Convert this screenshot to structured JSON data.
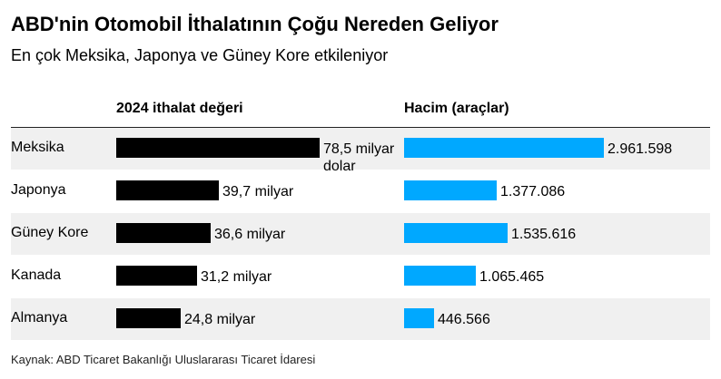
{
  "title": "ABD'nin Otomobil İthalatının Çoğu Nereden Geliyor",
  "subtitle": "En çok Meksika, Japonya ve Güney Kore etkileniyor",
  "source": "Kaynak: ABD Ticaret Bakanlığı Uluslararası Ticaret İdaresi",
  "colors": {
    "value_bar": "#000000",
    "volume_bar": "#00a8ff",
    "row_shade": "#f0f0f0"
  },
  "chart_data": {
    "type": "bar",
    "categories": [
      "Meksika",
      "Japonya",
      "Güney Kore",
      "Kanada",
      "Almanya"
    ],
    "series": [
      {
        "name": "2024 ithalat değeri",
        "values": [
          78.5,
          39.7,
          36.6,
          31.2,
          24.8
        ],
        "labels": [
          "78,5 milyar dolar",
          "39,7 milyar",
          "36,6 milyar",
          "31,2 milyar",
          "24,8 milyar"
        ]
      },
      {
        "name": "Hacim (araçlar)",
        "values": [
          2961598,
          1377086,
          1535616,
          1065465,
          446566
        ],
        "labels": [
          "2.961.598",
          "1.377.086",
          "1.535.616",
          "1.065.465",
          "446.566"
        ]
      }
    ],
    "orientation": "horizontal",
    "grid": false
  }
}
